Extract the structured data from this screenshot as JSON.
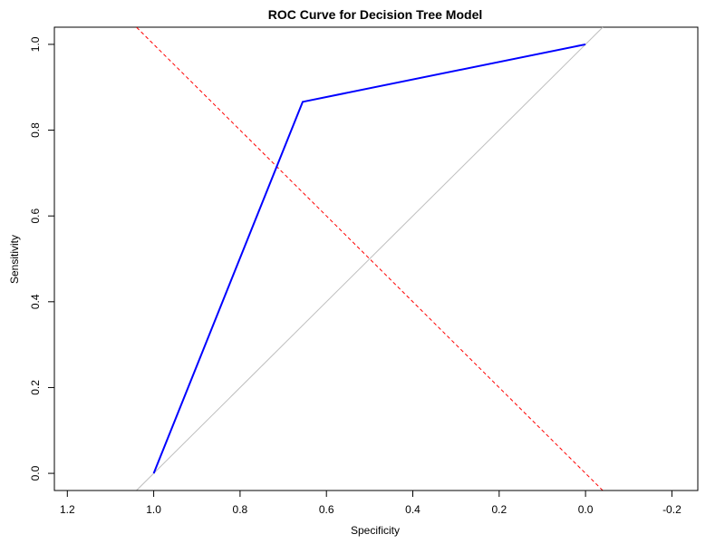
{
  "chart_data": {
    "type": "line",
    "title": "ROC Curve for Decision Tree Model",
    "xlabel": "Specificity",
    "ylabel": "Sensitivity",
    "xlim": [
      1.23,
      -0.26
    ],
    "ylim": [
      -0.04,
      1.04
    ],
    "x_reversed": true,
    "x_ticks": [
      1.2,
      1.0,
      0.8,
      0.6,
      0.4,
      0.2,
      0.0,
      -0.2
    ],
    "x_tick_labels": [
      "1.2",
      "1.0",
      "0.8",
      "0.6",
      "0.4",
      "0.2",
      "0.0",
      "-0.2"
    ],
    "y_ticks": [
      0.0,
      0.2,
      0.4,
      0.6,
      0.8,
      1.0
    ],
    "y_tick_labels": [
      "0.0",
      "0.2",
      "0.4",
      "0.6",
      "0.8",
      "1.0"
    ],
    "grid": false,
    "series": [
      {
        "style": "solid",
        "color": "#0000ff",
        "x": [
          1.0,
          0.655,
          0.0
        ],
        "y": [
          0.0,
          0.866,
          1.0
        ]
      }
    ],
    "reference_lines": [
      {
        "kind": "diagonal",
        "color": "#bebebe",
        "style": "solid",
        "x": [
          1.0,
          0.0
        ],
        "y": [
          0.0,
          1.0
        ]
      },
      {
        "kind": "anti-diagonal",
        "color": "#ff0000",
        "style": "dashed",
        "x": [
          1.0,
          0.0
        ],
        "y": [
          1.0,
          0.0
        ]
      }
    ]
  }
}
